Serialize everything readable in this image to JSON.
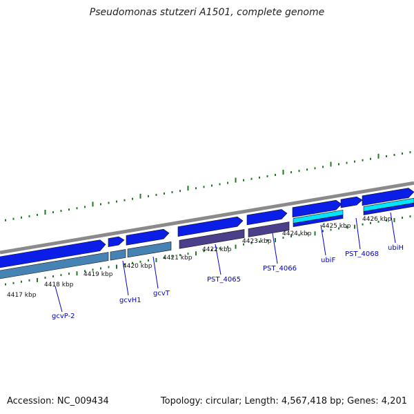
{
  "title": "Pseudomonas stutzeri A1501, complete genome",
  "footer": {
    "accession": "Accession: NC_009434",
    "summary": "Topology: circular; Length: 4,567,418 bp; Genes: 4,201"
  },
  "colors": {
    "backbone": "#8a8a8a",
    "forward_gene": "#0a1ee8",
    "reverse_gene_steel": "#4682b4",
    "reverse_gene_slate": "#4b3f8c",
    "highlight_gene": "#00e5ff",
    "gc_tick": "#1f7a1f",
    "label": "#0000cc"
  },
  "ruler": [
    {
      "label": "4417 kbp"
    },
    {
      "label": "4418 kbp"
    },
    {
      "label": "4419 kbp"
    },
    {
      "label": "4420 kbp"
    },
    {
      "label": "4421 kbp"
    },
    {
      "label": "4422 kbp"
    },
    {
      "label": "4423 kbp"
    },
    {
      "label": "4424 kbp"
    },
    {
      "label": "4425 kbp"
    },
    {
      "label": "4426 kbp"
    }
  ],
  "gene_labels": [
    {
      "name": "gcvP-2"
    },
    {
      "name": "gcvH1"
    },
    {
      "name": "gcvT"
    },
    {
      "name": "PST_4065"
    },
    {
      "name": "PST_4066"
    },
    {
      "name": "ubiF"
    },
    {
      "name": "PST_4068"
    },
    {
      "name": "ubiH"
    }
  ]
}
